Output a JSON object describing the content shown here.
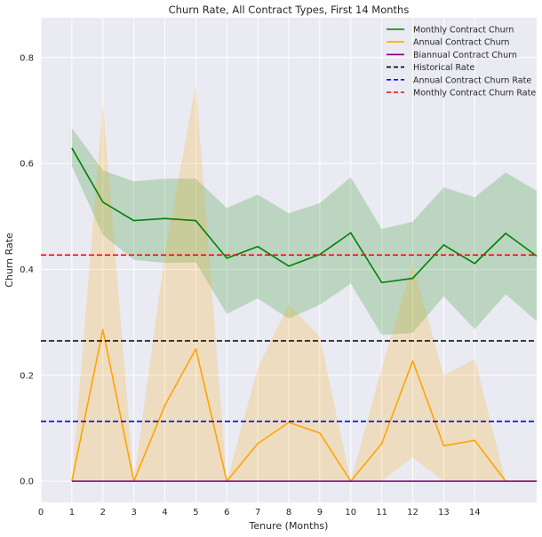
{
  "chart_data": {
    "type": "line",
    "title": "Churn Rate, All Contract Types, First 14 Months",
    "xlabel": "Tenure (Months)",
    "ylabel": "Churn Rate",
    "xlim": [
      0,
      16
    ],
    "ylim": [
      -0.04,
      0.875
    ],
    "xticks": [
      0,
      1,
      2,
      3,
      4,
      5,
      6,
      7,
      8,
      9,
      10,
      11,
      12,
      13,
      14
    ],
    "xtick_labels": [
      "0",
      "1",
      "2",
      "3",
      "4",
      "5",
      "6",
      "7",
      "8",
      "9",
      "10",
      "11",
      "12",
      "13",
      "14"
    ],
    "yticks": [
      0.0,
      0.2,
      0.4,
      0.6,
      0.8
    ],
    "ytick_labels": [
      "0.0",
      "0.2",
      "0.4",
      "0.6",
      "0.8"
    ],
    "grid": true,
    "background": "#eaeaf2",
    "legend_position": "top-right",
    "x": [
      1,
      2,
      3,
      4,
      5,
      6,
      7,
      8,
      9,
      10,
      11,
      12,
      13,
      14,
      15,
      16
    ],
    "series": [
      {
        "name": "Monthly Contract Churn",
        "color": "#008000",
        "style": "solid",
        "values": [
          0.629,
          0.527,
          0.492,
          0.496,
          0.492,
          0.421,
          0.443,
          0.406,
          0.428,
          0.469,
          0.375,
          0.383,
          0.446,
          0.411,
          0.468,
          0.425
        ],
        "band_lower": [
          0.595,
          0.465,
          0.418,
          0.412,
          0.413,
          0.316,
          0.345,
          0.307,
          0.333,
          0.373,
          0.276,
          0.28,
          0.349,
          0.287,
          0.353,
          0.302
        ],
        "band_upper": [
          0.667,
          0.587,
          0.566,
          0.571,
          0.571,
          0.516,
          0.541,
          0.506,
          0.525,
          0.574,
          0.476,
          0.49,
          0.555,
          0.536,
          0.583,
          0.548
        ],
        "band_color": "#008000"
      },
      {
        "name": "Annual Contract Churn",
        "color": "#ffa500",
        "style": "solid",
        "values": [
          0.0,
          0.286,
          0.0,
          0.143,
          0.25,
          0.0,
          0.071,
          0.111,
          0.091,
          0.0,
          0.071,
          0.227,
          0.067,
          0.077,
          0.0,
          0.0
        ],
        "band_lower": [
          0.0,
          0.0,
          0.0,
          0.0,
          0.0,
          0.0,
          0.0,
          0.0,
          0.0,
          0.0,
          0.0,
          0.045,
          0.0,
          0.0,
          0.0,
          0.0
        ],
        "band_upper": [
          0.0,
          0.714,
          0.0,
          0.429,
          0.75,
          0.0,
          0.214,
          0.333,
          0.273,
          0.0,
          0.214,
          0.409,
          0.2,
          0.231,
          0.0,
          0.0
        ],
        "band_color": "#ffa500"
      },
      {
        "name": "Biannual Contract Churn",
        "color": "#800080",
        "style": "solid",
        "values": [
          0.0,
          0.0,
          0.0,
          0.0,
          0.0,
          0.0,
          0.0,
          0.0,
          0.0,
          0.0,
          0.0,
          0.0,
          0.0,
          0.0,
          0.0,
          0.0
        ]
      },
      {
        "name": "Historical Rate",
        "color": "#000000",
        "style": "dashed",
        "hline": 0.265
      },
      {
        "name": "Annual Contract Churn Rate",
        "color": "#0000ff",
        "style": "dashed",
        "hline": 0.113
      },
      {
        "name": "Monthly Contract Churn Rate",
        "color": "#ff0000",
        "style": "dashed",
        "hline": 0.427
      }
    ]
  }
}
